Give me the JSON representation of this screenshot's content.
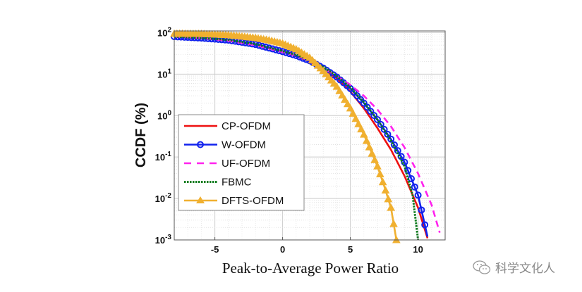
{
  "chart_data": {
    "type": "line",
    "title": "",
    "xlabel": "Peak-to-Average Power Ratio",
    "ylabel": "CCDF (%)",
    "xlim": [
      -8,
      12
    ],
    "ylim": [
      0.001,
      110
    ],
    "yscale": "log",
    "grid": true,
    "legend_position": "bottom-left",
    "x_ticks": [
      -5,
      0,
      5,
      10
    ],
    "x_tick_labels": [
      "-5",
      "0",
      "5",
      "10"
    ],
    "y_ticks": [
      100,
      10,
      1,
      0.1,
      0.01,
      0.001
    ],
    "y_tick_labels": [
      {
        "base": "10",
        "exp": "2"
      },
      {
        "base": "10",
        "exp": "1"
      },
      {
        "base": "10",
        "exp": "0"
      },
      {
        "base": "10",
        "exp": "-1"
      },
      {
        "base": "10",
        "exp": "-2"
      },
      {
        "base": "10",
        "exp": "-3"
      }
    ],
    "series": [
      {
        "name": "CP-OFDM",
        "color": "#ee1111",
        "style": "solid",
        "marker": "none",
        "x": [
          -8,
          -6,
          -4,
          -2,
          0,
          1,
          2,
          3,
          4,
          5,
          6,
          7,
          8,
          9,
          10,
          10.7
        ],
        "y": [
          80,
          74,
          66,
          52,
          35,
          27,
          20,
          13,
          8,
          3.8,
          1.5,
          0.5,
          0.15,
          0.035,
          0.006,
          0.0011
        ]
      },
      {
        "name": "W-OFDM",
        "color": "#1122ee",
        "style": "solid",
        "marker": "circle",
        "x": [
          -8,
          -6,
          -4,
          -2,
          0,
          1,
          2,
          3,
          4,
          5,
          6,
          7,
          8,
          9,
          10,
          10.7
        ],
        "y": [
          80,
          74,
          66,
          52,
          35,
          28,
          21,
          14,
          8.5,
          4.5,
          2,
          0.8,
          0.27,
          0.075,
          0.012,
          0.0012
        ]
      },
      {
        "name": "UF-OFDM",
        "color": "#ff22ee",
        "style": "dashed",
        "marker": "none",
        "x": [
          -8,
          -6,
          -4,
          -2,
          0,
          1,
          2,
          3,
          4,
          5,
          6,
          7,
          8,
          9,
          10,
          11,
          11.6
        ],
        "y": [
          80,
          74,
          64,
          50,
          34,
          28,
          21,
          14,
          9,
          5.5,
          3,
          1.4,
          0.55,
          0.17,
          0.04,
          0.007,
          0.0015
        ]
      },
      {
        "name": "FBMC",
        "color": "#0b7a1c",
        "style": "dotted",
        "marker": "none",
        "x": [
          -8,
          -6,
          -4,
          -2,
          0,
          1,
          2,
          3,
          4,
          5,
          6,
          7,
          8,
          9,
          9.6,
          10
        ],
        "y": [
          80,
          75,
          67,
          53,
          36,
          29,
          22,
          15,
          9,
          4.8,
          2.1,
          0.8,
          0.25,
          0.06,
          0.012,
          0.001
        ]
      },
      {
        "name": "DFTS-OFDM",
        "color": "#f0b030",
        "style": "solid",
        "marker": "triangle",
        "x": [
          -8,
          -6,
          -4,
          -2,
          -1,
          0,
          1,
          2,
          3,
          4,
          5,
          6,
          7,
          7.5,
          8,
          8.4
        ],
        "y": [
          95,
          94,
          88,
          75,
          66,
          55,
          40,
          25,
          12,
          5,
          1.5,
          0.35,
          0.06,
          0.02,
          0.006,
          0.001
        ]
      }
    ]
  },
  "watermark": {
    "text": "科学文化人",
    "icon": "wechat-icon"
  }
}
